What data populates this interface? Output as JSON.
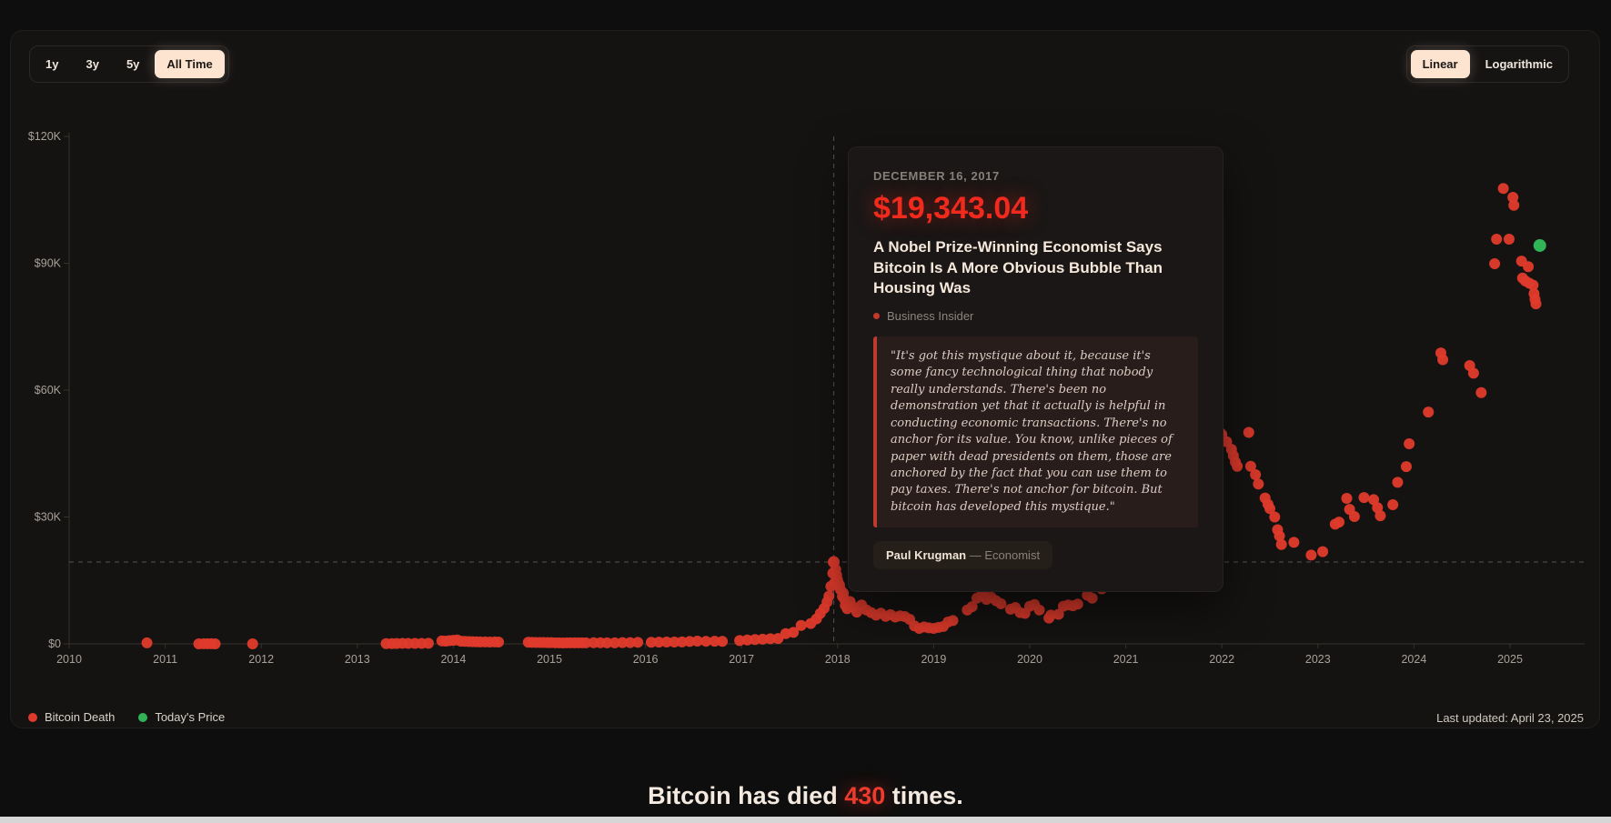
{
  "toolbar": {
    "ranges": [
      {
        "label": "1y",
        "active": false
      },
      {
        "label": "3y",
        "active": false
      },
      {
        "label": "5y",
        "active": false
      },
      {
        "label": "All Time",
        "active": true
      }
    ],
    "scales": [
      {
        "label": "Linear",
        "active": true
      },
      {
        "label": "Logarithmic",
        "active": false
      }
    ]
  },
  "tooltip": {
    "date": "DECEMBER 16, 2017",
    "price": "$19,343.04",
    "headline": "A Nobel Prize-Winning Economist Says Bitcoin Is A More Obvious Bubble Than Housing Was",
    "source": "Business Insider",
    "quote": "\"It's got this mystique about it, because it's some fancy technological thing that nobody really understands. There's been no demonstration yet that it actually is helpful in conducting economic transactions. There's no anchor for its value. You know, unlike pieces of paper with dead presidents on them, those are anchored by the fact that you can use them to pay taxes. There's not anchor for bitcoin. But bitcoin has developed this mystique.\"",
    "author": "Paul Krugman",
    "author_role": "— Economist"
  },
  "legend": {
    "death_label": "Bitcoin Death",
    "today_label": "Today's Price"
  },
  "last_updated": "Last updated: April 23, 2025",
  "footer": {
    "prefix": "Bitcoin has died ",
    "count": "430",
    "suffix": " times."
  },
  "colors": {
    "death": "#df3a2c",
    "today": "#31b457",
    "axis": "#35322e",
    "tick_text": "#a8a199",
    "crosshair": "rgba(190,185,178,0.4)"
  },
  "chart_data": {
    "type": "scatter",
    "title": "Bitcoin death declarations vs price (USD)",
    "xlabel": "",
    "ylabel": "",
    "x_ticks": [
      2010,
      2011,
      2012,
      2013,
      2014,
      2015,
      2016,
      2017,
      2018,
      2019,
      2020,
      2021,
      2022,
      2023,
      2024,
      2025
    ],
    "x_tick_labels": [
      "2010",
      "2011",
      "2012",
      "2013",
      "2014",
      "2015",
      "2016",
      "2017",
      "2018",
      "2019",
      "2020",
      "2021",
      "2022",
      "2023",
      "2024",
      "2025"
    ],
    "y_ticks": [
      0,
      30000,
      60000,
      90000,
      120000
    ],
    "y_tick_labels": [
      "$0",
      "$30K",
      "$60K",
      "$90K",
      "$120K"
    ],
    "xlim": [
      2010,
      2025.78
    ],
    "ylim": [
      0,
      120000
    ],
    "grid": false,
    "legend_position": "bottom-left",
    "selected_point": {
      "x": 2017.96,
      "y": 19343.04,
      "label": "DECEMBER 16, 2017 — $19,343.04"
    },
    "today_point": {
      "x": 2025.31,
      "y": 94200
    },
    "points": [
      [
        2010.81,
        230
      ],
      [
        2011.35,
        9
      ],
      [
        2011.4,
        15
      ],
      [
        2011.44,
        31
      ],
      [
        2011.48,
        17
      ],
      [
        2011.52,
        11
      ],
      [
        2011.91,
        3
      ],
      [
        2013.3,
        47
      ],
      [
        2013.36,
        65
      ],
      [
        2013.41,
        91
      ],
      [
        2013.47,
        120
      ],
      [
        2013.53,
        105
      ],
      [
        2013.6,
        111
      ],
      [
        2013.67,
        97
      ],
      [
        2013.74,
        131
      ],
      [
        2013.88,
        700
      ],
      [
        2013.92,
        650
      ],
      [
        2013.96,
        755
      ],
      [
        2014.0,
        820
      ],
      [
        2014.04,
        915
      ],
      [
        2014.08,
        620
      ],
      [
        2014.12,
        585
      ],
      [
        2014.16,
        545
      ],
      [
        2014.2,
        500
      ],
      [
        2014.24,
        480
      ],
      [
        2014.28,
        455
      ],
      [
        2014.33,
        450
      ],
      [
        2014.38,
        430
      ],
      [
        2014.43,
        445
      ],
      [
        2014.47,
        420
      ],
      [
        2014.78,
        380
      ],
      [
        2014.82,
        350
      ],
      [
        2014.86,
        335
      ],
      [
        2014.9,
        320
      ],
      [
        2014.94,
        310
      ],
      [
        2014.98,
        300
      ],
      [
        2015.02,
        285
      ],
      [
        2015.06,
        255
      ],
      [
        2015.1,
        230
      ],
      [
        2015.14,
        220
      ],
      [
        2015.18,
        240
      ],
      [
        2015.22,
        237
      ],
      [
        2015.26,
        246
      ],
      [
        2015.3,
        252
      ],
      [
        2015.34,
        242
      ],
      [
        2015.38,
        232
      ],
      [
        2015.46,
        262
      ],
      [
        2015.53,
        270
      ],
      [
        2015.6,
        243
      ],
      [
        2015.68,
        251
      ],
      [
        2015.76,
        283
      ],
      [
        2015.84,
        302
      ],
      [
        2015.92,
        362
      ],
      [
        2016.06,
        383
      ],
      [
        2016.14,
        405
      ],
      [
        2016.22,
        421
      ],
      [
        2016.3,
        435
      ],
      [
        2016.38,
        452
      ],
      [
        2016.46,
        575
      ],
      [
        2016.54,
        641
      ],
      [
        2016.63,
        604
      ],
      [
        2016.72,
        622
      ],
      [
        2016.8,
        583
      ],
      [
        2016.98,
        785
      ],
      [
        2017.06,
        905
      ],
      [
        2017.14,
        1012
      ],
      [
        2017.22,
        1105
      ],
      [
        2017.3,
        1203
      ],
      [
        2017.38,
        1255
      ],
      [
        2017.46,
        2410
      ],
      [
        2017.54,
        2715
      ],
      [
        2017.62,
        4350
      ],
      [
        2017.72,
        4800
      ],
      [
        2017.78,
        5900
      ],
      [
        2017.82,
        7200
      ],
      [
        2017.86,
        8400
      ],
      [
        2017.89,
        9900
      ],
      [
        2017.91,
        11300
      ],
      [
        2017.93,
        13600
      ],
      [
        2017.95,
        16700
      ],
      [
        2017.97,
        14500
      ],
      [
        2017.98,
        17600
      ],
      [
        2017.99,
        16200
      ],
      [
        2018.0,
        15100
      ],
      [
        2018.01,
        14200
      ],
      [
        2018.02,
        13900
      ],
      [
        2018.03,
        12800
      ],
      [
        2018.05,
        11200
      ],
      [
        2018.06,
        12000
      ],
      [
        2018.07,
        10600
      ],
      [
        2018.08,
        9100
      ],
      [
        2018.1,
        8300
      ],
      [
        2018.13,
        10000
      ],
      [
        2018.16,
        8800
      ],
      [
        2018.2,
        7500
      ],
      [
        2018.25,
        9200
      ],
      [
        2018.3,
        8000
      ],
      [
        2018.35,
        7400
      ],
      [
        2018.4,
        6800
      ],
      [
        2018.45,
        7250
      ],
      [
        2018.5,
        6500
      ],
      [
        2018.55,
        6900
      ],
      [
        2018.6,
        6350
      ],
      [
        2018.65,
        6600
      ],
      [
        2018.7,
        6450
      ],
      [
        2018.75,
        5800
      ],
      [
        2018.8,
        4250
      ],
      [
        2018.85,
        3650
      ],
      [
        2018.9,
        4000
      ],
      [
        2018.95,
        3800
      ],
      [
        2019.0,
        3650
      ],
      [
        2019.05,
        3900
      ],
      [
        2019.1,
        4100
      ],
      [
        2019.15,
        5200
      ],
      [
        2019.2,
        5500
      ],
      [
        2019.35,
        8000
      ],
      [
        2019.4,
        8800
      ],
      [
        2019.45,
        10800
      ],
      [
        2019.5,
        11500
      ],
      [
        2019.52,
        12200
      ],
      [
        2019.55,
        10500
      ],
      [
        2019.6,
        11000
      ],
      [
        2019.65,
        10200
      ],
      [
        2019.7,
        9500
      ],
      [
        2019.8,
        8200
      ],
      [
        2019.85,
        8600
      ],
      [
        2019.9,
        7400
      ],
      [
        2019.95,
        7200
      ],
      [
        2020.0,
        8900
      ],
      [
        2020.05,
        9300
      ],
      [
        2020.1,
        8000
      ],
      [
        2020.2,
        6100
      ],
      [
        2020.22,
        6800
      ],
      [
        2020.3,
        7000
      ],
      [
        2020.35,
        8900
      ],
      [
        2020.4,
        9200
      ],
      [
        2020.45,
        9000
      ],
      [
        2020.5,
        9400
      ],
      [
        2020.6,
        11500
      ],
      [
        2020.65,
        10800
      ],
      [
        2020.75,
        13000
      ],
      [
        2020.87,
        22600
      ],
      [
        2021.0,
        31400
      ],
      [
        2021.02,
        28600
      ],
      [
        2021.1,
        36000
      ],
      [
        2021.15,
        40000
      ],
      [
        2021.2,
        44000
      ],
      [
        2021.3,
        49000
      ],
      [
        2021.45,
        38000
      ],
      [
        2021.55,
        36000
      ],
      [
        2021.63,
        34000
      ],
      [
        2021.75,
        45000
      ],
      [
        2021.85,
        52000
      ],
      [
        2021.95,
        52000
      ],
      [
        2021.98,
        50000
      ],
      [
        2022.0,
        49500
      ],
      [
        2022.05,
        47800
      ],
      [
        2022.1,
        46000
      ],
      [
        2022.12,
        44500
      ],
      [
        2022.14,
        43000
      ],
      [
        2022.16,
        42000
      ],
      [
        2022.28,
        50000
      ],
      [
        2022.3,
        42000
      ],
      [
        2022.35,
        40000
      ],
      [
        2022.38,
        37800
      ],
      [
        2022.45,
        34500
      ],
      [
        2022.48,
        33000
      ],
      [
        2022.5,
        32000
      ],
      [
        2022.55,
        30000
      ],
      [
        2022.58,
        27000
      ],
      [
        2022.6,
        25500
      ],
      [
        2022.62,
        23500
      ],
      [
        2022.75,
        24000
      ],
      [
        2022.93,
        21000
      ],
      [
        2023.05,
        21800
      ],
      [
        2023.18,
        28300
      ],
      [
        2023.22,
        28800
      ],
      [
        2023.3,
        34400
      ],
      [
        2023.33,
        31800
      ],
      [
        2023.38,
        30100
      ],
      [
        2023.48,
        34600
      ],
      [
        2023.58,
        34100
      ],
      [
        2023.62,
        32200
      ],
      [
        2023.65,
        30300
      ],
      [
        2023.78,
        32900
      ],
      [
        2023.83,
        38200
      ],
      [
        2023.92,
        41900
      ],
      [
        2023.95,
        47300
      ],
      [
        2024.15,
        54800
      ],
      [
        2024.28,
        68800
      ],
      [
        2024.3,
        67200
      ],
      [
        2024.58,
        65800
      ],
      [
        2024.62,
        64000
      ],
      [
        2024.7,
        59400
      ],
      [
        2024.84,
        89900
      ],
      [
        2024.86,
        95700
      ],
      [
        2024.93,
        107700
      ],
      [
        2024.99,
        95700
      ],
      [
        2025.03,
        105600
      ],
      [
        2025.04,
        103700
      ],
      [
        2025.12,
        90500
      ],
      [
        2025.13,
        86500
      ],
      [
        2025.16,
        85800
      ],
      [
        2025.19,
        89200
      ],
      [
        2025.2,
        85300
      ],
      [
        2025.24,
        84800
      ],
      [
        2025.25,
        82800
      ],
      [
        2025.26,
        81500
      ],
      [
        2025.27,
        80400
      ]
    ]
  }
}
